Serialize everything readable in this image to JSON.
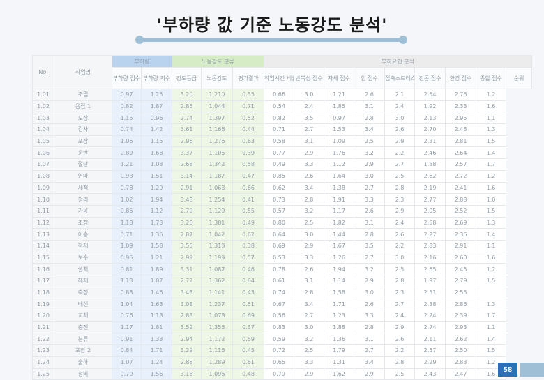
{
  "slide": {
    "title": "'부하량 값 기준 노동강도 분석'",
    "page_number": "58"
  },
  "table": {
    "groups": [
      {
        "label": "No.",
        "span": 1,
        "rows": 2
      },
      {
        "label": "작업명",
        "span": 1,
        "rows": 2
      },
      {
        "label": "부하량",
        "span": 2,
        "rows": 1
      },
      {
        "label": "노동강도 분류",
        "span": 3,
        "rows": 1
      },
      {
        "label": "부하요인 분석",
        "span": 9,
        "rows": 1
      }
    ],
    "subheaders": [
      "부하량 점수",
      "부하량 지수",
      "강도등급",
      "노동강도",
      "평가결과",
      "작업시간 비율",
      "반복성 점수",
      "자세 점수",
      "힘 점수",
      "접촉스트레스",
      "진동 점수",
      "환경 점수",
      "종합 점수",
      "순위"
    ],
    "rows": [
      [
        "1.01",
        "조립",
        "0.97",
        "1.25",
        "3.20",
        "1,210",
        "0.35",
        "0.66",
        "3.0",
        "1.21",
        "2.6",
        "2.1",
        "2.54",
        "2.76",
        "1.2"
      ],
      [
        "1.02",
        "용접 1",
        "0.82",
        "1.87",
        "2.85",
        "1,044",
        "0.71",
        "0.54",
        "2.4",
        "1.85",
        "3.1",
        "2.4",
        "1.92",
        "2.33",
        "1.6"
      ],
      [
        "1.03",
        "도장",
        "1.15",
        "0.96",
        "2.74",
        "1,397",
        "0.52",
        "0.82",
        "3.5",
        "0.97",
        "2.8",
        "3.0",
        "2.13",
        "2.95",
        "1.1"
      ],
      [
        "1.04",
        "검사",
        "0.74",
        "1.42",
        "3.61",
        "1,168",
        "0.44",
        "0.71",
        "2.7",
        "1.53",
        "3.4",
        "2.6",
        "2.70",
        "2.48",
        "1.3"
      ],
      [
        "1.05",
        "포장",
        "1.06",
        "1.15",
        "2.96",
        "1,276",
        "0.63",
        "0.58",
        "3.1",
        "1.09",
        "2.5",
        "2.9",
        "2.31",
        "2.81",
        "1.5"
      ],
      [
        "1.06",
        "운반",
        "0.89",
        "1.68",
        "3.37",
        "1,105",
        "0.39",
        "0.77",
        "2.9",
        "1.76",
        "3.2",
        "2.2",
        "2.46",
        "2.64",
        "1.4"
      ],
      [
        "1.07",
        "절단",
        "1.21",
        "1.03",
        "2.68",
        "1,342",
        "0.58",
        "0.49",
        "3.3",
        "1.12",
        "2.9",
        "2.7",
        "1.88",
        "2.57",
        "1.7"
      ],
      [
        "1.08",
        "연마",
        "0.93",
        "1.51",
        "3.14",
        "1,187",
        "0.47",
        "0.85",
        "2.6",
        "1.64",
        "3.0",
        "2.5",
        "2.62",
        "2.72",
        "1.2"
      ],
      [
        "1.09",
        "세척",
        "0.78",
        "1.29",
        "2.91",
        "1,063",
        "0.66",
        "0.62",
        "3.4",
        "1.38",
        "2.7",
        "2.8",
        "2.19",
        "2.41",
        "1.6"
      ],
      [
        "1.10",
        "정리",
        "1.02",
        "1.94",
        "3.48",
        "1,254",
        "0.41",
        "0.73",
        "2.8",
        "1.91",
        "3.3",
        "2.3",
        "2.77",
        "2.88",
        "1.0"
      ],
      [
        "1.11",
        "가공",
        "0.86",
        "1.12",
        "2.79",
        "1,129",
        "0.55",
        "0.57",
        "3.2",
        "1.17",
        "2.6",
        "2.9",
        "2.05",
        "2.52",
        "1.5"
      ],
      [
        "1.12",
        "조정",
        "1.18",
        "1.73",
        "3.26",
        "1,381",
        "0.49",
        "0.80",
        "2.5",
        "1.82",
        "3.1",
        "2.4",
        "2.58",
        "2.69",
        "1.3"
      ],
      [
        "1.13",
        "이송",
        "0.71",
        "1.36",
        "2.87",
        "1,042",
        "0.62",
        "0.64",
        "3.0",
        "1.44",
        "2.8",
        "2.6",
        "2.27",
        "2.36",
        "1.4"
      ],
      [
        "1.14",
        "적재",
        "1.09",
        "1.58",
        "3.55",
        "1,318",
        "0.38",
        "0.69",
        "2.9",
        "1.67",
        "3.5",
        "2.2",
        "2.83",
        "2.91",
        "1.1"
      ],
      [
        "1.15",
        "보수",
        "0.95",
        "1.21",
        "2.99",
        "1,199",
        "0.57",
        "0.53",
        "3.3",
        "1.26",
        "2.7",
        "3.0",
        "2.16",
        "2.60",
        "1.6"
      ],
      [
        "1.16",
        "설치",
        "0.81",
        "1.89",
        "3.31",
        "1,087",
        "0.46",
        "0.78",
        "2.6",
        "1.94",
        "3.2",
        "2.5",
        "2.65",
        "2.45",
        "1.2"
      ],
      [
        "1.17",
        "해체",
        "1.13",
        "1.07",
        "2.72",
        "1,362",
        "0.64",
        "0.61",
        "3.1",
        "1.14",
        "2.9",
        "2.8",
        "1.97",
        "2.79",
        "1.5"
      ],
      [
        "1.18",
        "측정",
        "0.88",
        "1.46",
        "3.43",
        "1,141",
        "0.43",
        "0.74",
        "2.8",
        "1.58",
        "3.0",
        "2.3",
        "2.51",
        "2.55",
        ""
      ],
      [
        "1.19",
        "배선",
        "1.04",
        "1.63",
        "3.08",
        "1,237",
        "0.51",
        "0.67",
        "3.4",
        "1.71",
        "2.6",
        "2.7",
        "2.38",
        "2.86",
        "1.3"
      ],
      [
        "1.20",
        "교체",
        "0.76",
        "1.18",
        "2.83",
        "1,078",
        "0.69",
        "0.56",
        "2.7",
        "1.23",
        "3.3",
        "2.4",
        "2.24",
        "2.39",
        "1.7"
      ],
      [
        "1.21",
        "충전",
        "1.17",
        "1.81",
        "3.52",
        "1,355",
        "0.37",
        "0.83",
        "3.0",
        "1.88",
        "2.8",
        "2.9",
        "2.74",
        "2.93",
        "1.1"
      ],
      [
        "1.22",
        "분류",
        "0.91",
        "1.33",
        "2.94",
        "1,172",
        "0.59",
        "0.59",
        "3.2",
        "1.36",
        "3.1",
        "2.6",
        "2.11",
        "2.62",
        "1.4"
      ],
      [
        "1.23",
        "포장 2",
        "0.84",
        "1.71",
        "3.29",
        "1,116",
        "0.45",
        "0.72",
        "2.5",
        "1.79",
        "2.7",
        "2.2",
        "2.57",
        "2.50",
        "1.5"
      ],
      [
        "1.24",
        "출하",
        "1.07",
        "1.24",
        "2.88",
        "1,289",
        "0.61",
        "0.65",
        "3.3",
        "1.31",
        "3.4",
        "2.8",
        "2.29",
        "2.83",
        "1.2"
      ],
      [
        "1.25",
        "정비",
        "0.79",
        "1.56",
        "3.18",
        "1,096",
        "0.48",
        "0.79",
        "2.9",
        "1.62",
        "2.9",
        "2.5",
        "2.43",
        "2.47",
        "1.6"
      ]
    ]
  }
}
